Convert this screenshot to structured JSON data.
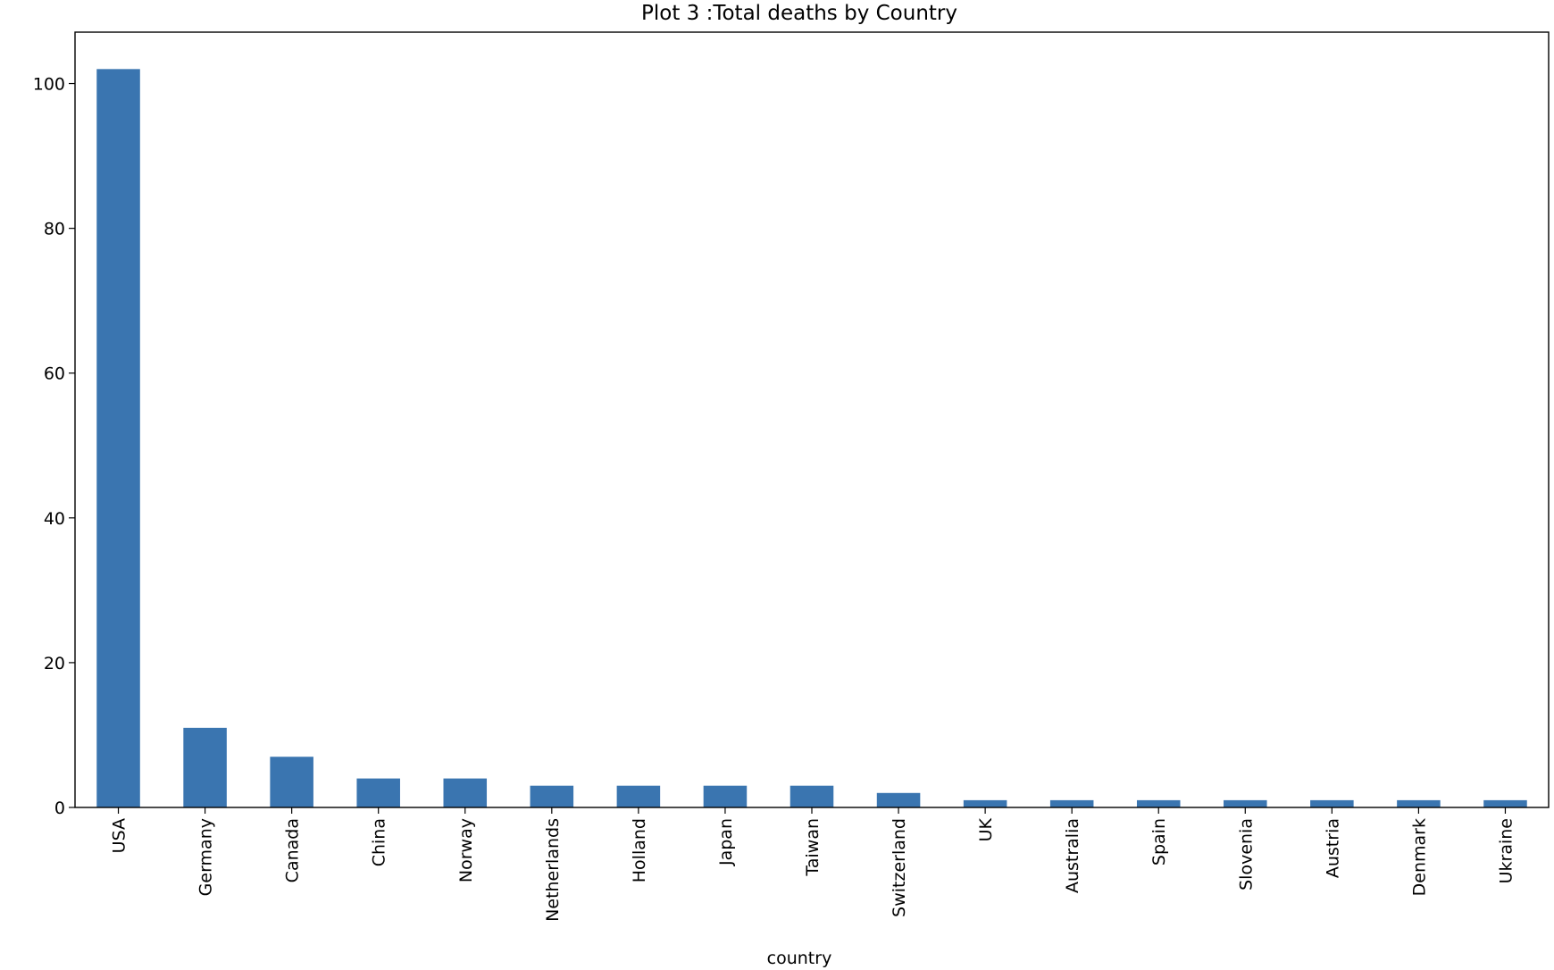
{
  "chart_data": {
    "type": "bar",
    "title": "Plot 3 :Total deaths by Country",
    "xlabel": "country",
    "ylabel": "",
    "categories": [
      "USA",
      "Germany",
      "Canada",
      "China",
      "Norway",
      "Netherlands",
      "Holland",
      "Japan",
      "Taiwan",
      "Switzerland",
      "UK",
      "Australia",
      "Spain",
      "Slovenia",
      "Austria",
      "Denmark",
      "Ukraine"
    ],
    "values": [
      102,
      11,
      7,
      4,
      4,
      3,
      3,
      3,
      3,
      2,
      1,
      1,
      1,
      1,
      1,
      1,
      1
    ],
    "yticks": [
      0,
      20,
      40,
      60,
      80,
      100
    ],
    "ylim": [
      0,
      107.1
    ],
    "grid": false,
    "legend": "none",
    "bar_color": "#3a75b0"
  }
}
